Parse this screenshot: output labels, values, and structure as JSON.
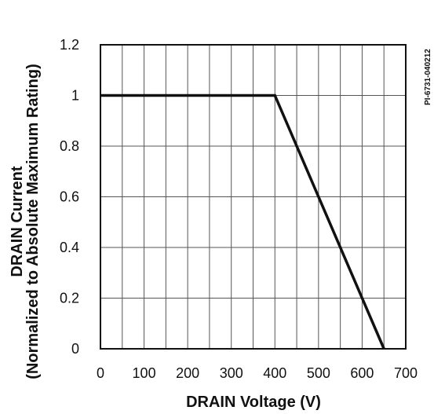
{
  "chart_data": {
    "type": "line",
    "title": "",
    "xlabel": "DRAIN Voltage (V)",
    "ylabel_line1": "DRAIN Current",
    "ylabel_line2": "(Normalized to Absolute Maximum Rating)",
    "xlim": [
      0,
      700
    ],
    "ylim": [
      0,
      1.2
    ],
    "x_ticks": [
      0,
      100,
      200,
      300,
      400,
      500,
      600,
      700
    ],
    "x_tick_labels": [
      "0",
      "100",
      "200",
      "300",
      "400",
      "500",
      "600",
      "700"
    ],
    "y_ticks": [
      0,
      0.2,
      0.4,
      0.6,
      0.8,
      1,
      1.2
    ],
    "y_tick_labels": [
      "0",
      "0.2",
      "0.4",
      "0.6",
      "0.8",
      "1",
      "1.2"
    ],
    "grid": true,
    "series": [
      {
        "x": [
          0,
          400,
          650
        ],
        "y": [
          1,
          1,
          0
        ]
      }
    ],
    "annotation": "PI-6731-040212",
    "line_color": "#111111",
    "grid_color": "#555555"
  }
}
